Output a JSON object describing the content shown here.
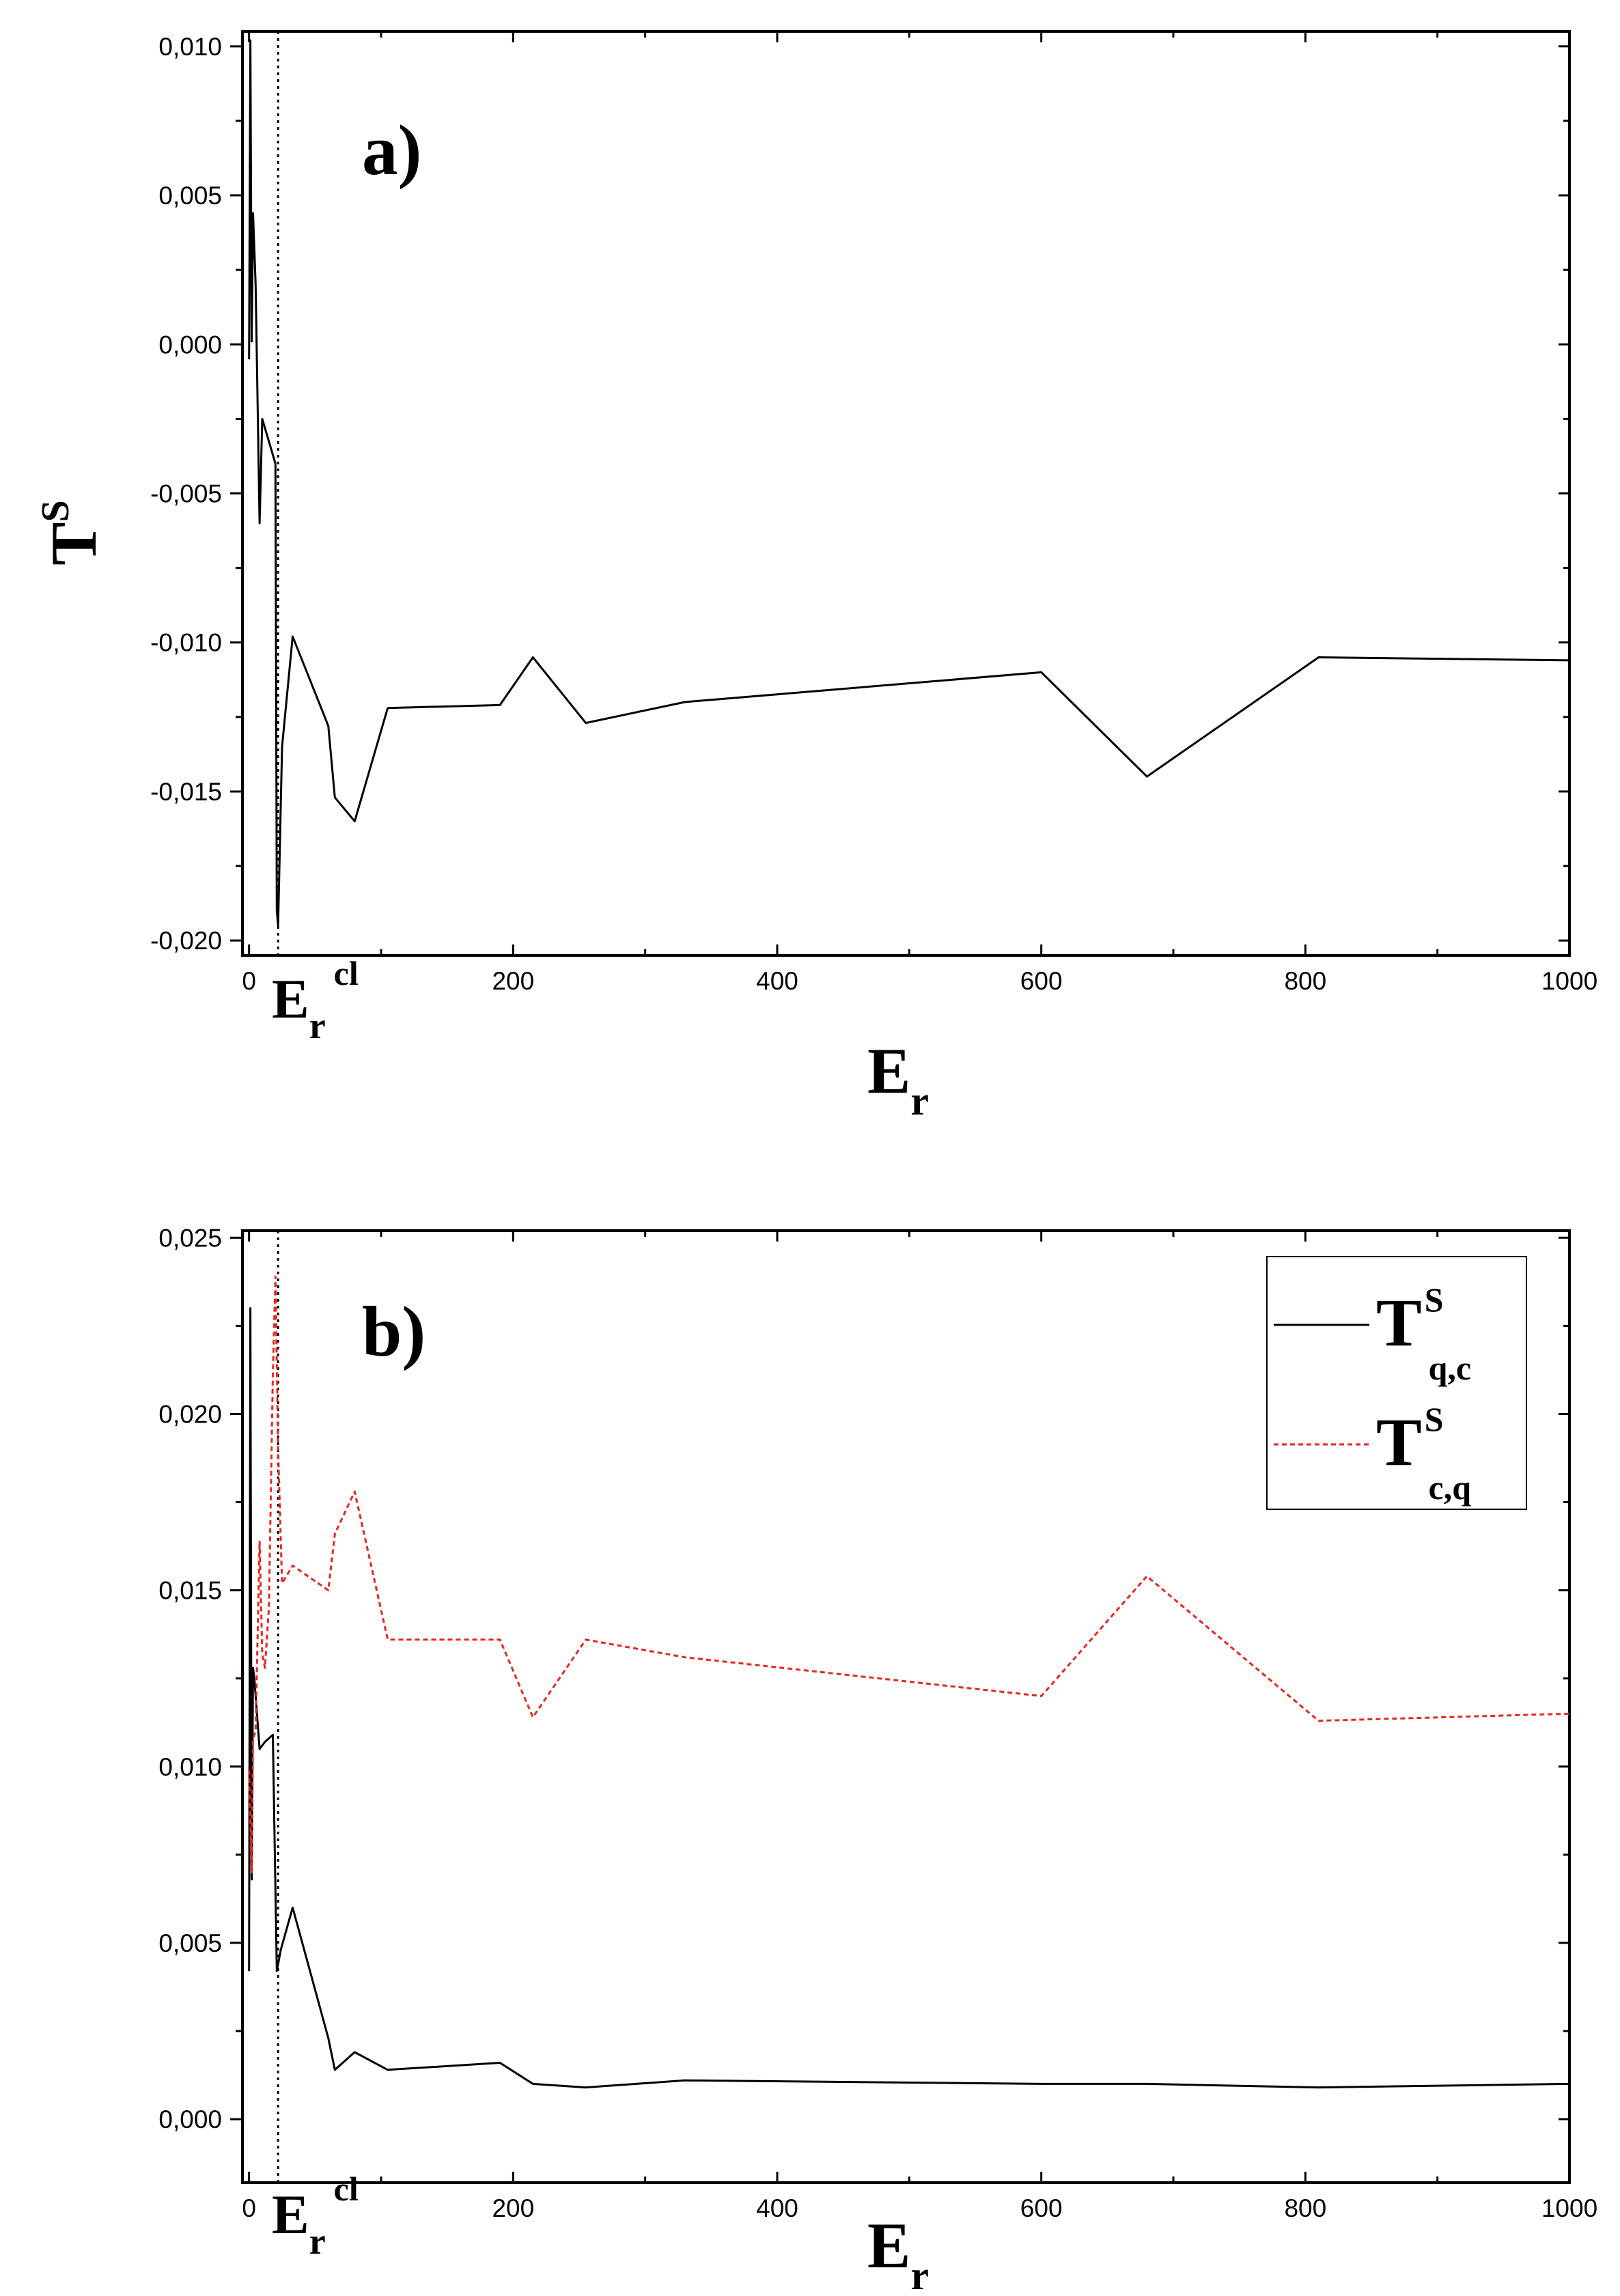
{
  "chart_data": [
    {
      "type": "line",
      "panel_label": "a)",
      "ylabel": {
        "main": "T",
        "sup": "S"
      },
      "xlabel": {
        "main": "E",
        "sub": "r"
      },
      "critical_marker": {
        "main": "E",
        "sub": "r",
        "sup": "cl",
        "x": 22
      },
      "xlim": [
        -5,
        1000
      ],
      "ylim": [
        -0.0205,
        0.0105
      ],
      "x_ticks": [
        0,
        200,
        400,
        600,
        800,
        1000
      ],
      "x_tick_labels": [
        "0",
        "200",
        "400",
        "600",
        "800",
        "1000"
      ],
      "y_ticks": [
        -0.02,
        -0.015,
        -0.01,
        -0.005,
        0.0,
        0.005,
        0.01
      ],
      "y_tick_labels": [
        "-0,020",
        "-0,015",
        "-0,010",
        "-0,005",
        "0,000",
        "0,005",
        "0,010"
      ],
      "series": [
        {
          "color": "#000000",
          "dash": "solid",
          "x": [
            0,
            1,
            2,
            3,
            5,
            8,
            10,
            20,
            21,
            22,
            25,
            33,
            60,
            65,
            80,
            105,
            190,
            215,
            255,
            330,
            600,
            680,
            810,
            1000
          ],
          "y": [
            -0.0005,
            0.0102,
            0.0001,
            0.0044,
            0.002,
            -0.006,
            -0.0025,
            -0.004,
            -0.019,
            -0.0195,
            -0.0135,
            -0.0098,
            -0.0128,
            -0.0152,
            -0.016,
            -0.0122,
            -0.0121,
            -0.0105,
            -0.0127,
            -0.012,
            -0.011,
            -0.0145,
            -0.0105,
            -0.0106
          ]
        }
      ]
    },
    {
      "type": "line",
      "panel_label": "b)",
      "xlabel": {
        "main": "E",
        "sub": "r"
      },
      "critical_marker": {
        "main": "E",
        "sub": "r",
        "sup": "cl",
        "x": 22
      },
      "xlim": [
        -5,
        1000
      ],
      "ylim": [
        -0.0018,
        0.0252
      ],
      "x_ticks": [
        0,
        200,
        400,
        600,
        800,
        1000
      ],
      "x_tick_labels": [
        "0",
        "200",
        "400",
        "600",
        "800",
        "1000"
      ],
      "y_ticks": [
        0.0,
        0.005,
        0.01,
        0.015,
        0.02,
        0.025
      ],
      "y_tick_labels": [
        "0,000",
        "0,005",
        "0,010",
        "0,015",
        "0,020",
        "0,025"
      ],
      "legend_position": "top-right",
      "series": [
        {
          "name": {
            "main": "T",
            "sup": "S",
            "sub": "q,c"
          },
          "color": "#000000",
          "dash": "solid",
          "x": [
            0,
            1,
            2,
            3,
            4,
            8,
            12,
            18,
            21,
            24,
            33,
            60,
            65,
            80,
            105,
            190,
            215,
            255,
            330,
            600,
            680,
            810,
            1000
          ],
          "y": [
            0.0042,
            0.023,
            0.0068,
            0.0128,
            0.0125,
            0.0105,
            0.0107,
            0.0109,
            0.0042,
            0.0048,
            0.006,
            0.0023,
            0.0014,
            0.0019,
            0.0014,
            0.0016,
            0.001,
            0.0009,
            0.0011,
            0.001,
            0.001,
            0.0009,
            0.001
          ]
        },
        {
          "name": {
            "main": "T",
            "sup": "S",
            "sub": "c,q"
          },
          "color": "#e8261f",
          "dash": "dashed",
          "x": [
            0,
            2,
            3,
            5,
            8,
            10,
            12,
            15,
            18,
            20,
            22,
            25,
            33,
            60,
            65,
            80,
            105,
            190,
            215,
            255,
            330,
            600,
            680,
            810,
            1000
          ],
          "y": [
            0.0099,
            0.007,
            0.0108,
            0.011,
            0.0164,
            0.0132,
            0.0128,
            0.0145,
            0.0211,
            0.0239,
            0.019,
            0.0152,
            0.0157,
            0.015,
            0.0166,
            0.0178,
            0.0136,
            0.0136,
            0.0114,
            0.0136,
            0.0131,
            0.012,
            0.0154,
            0.0113,
            0.0115
          ]
        }
      ]
    }
  ]
}
